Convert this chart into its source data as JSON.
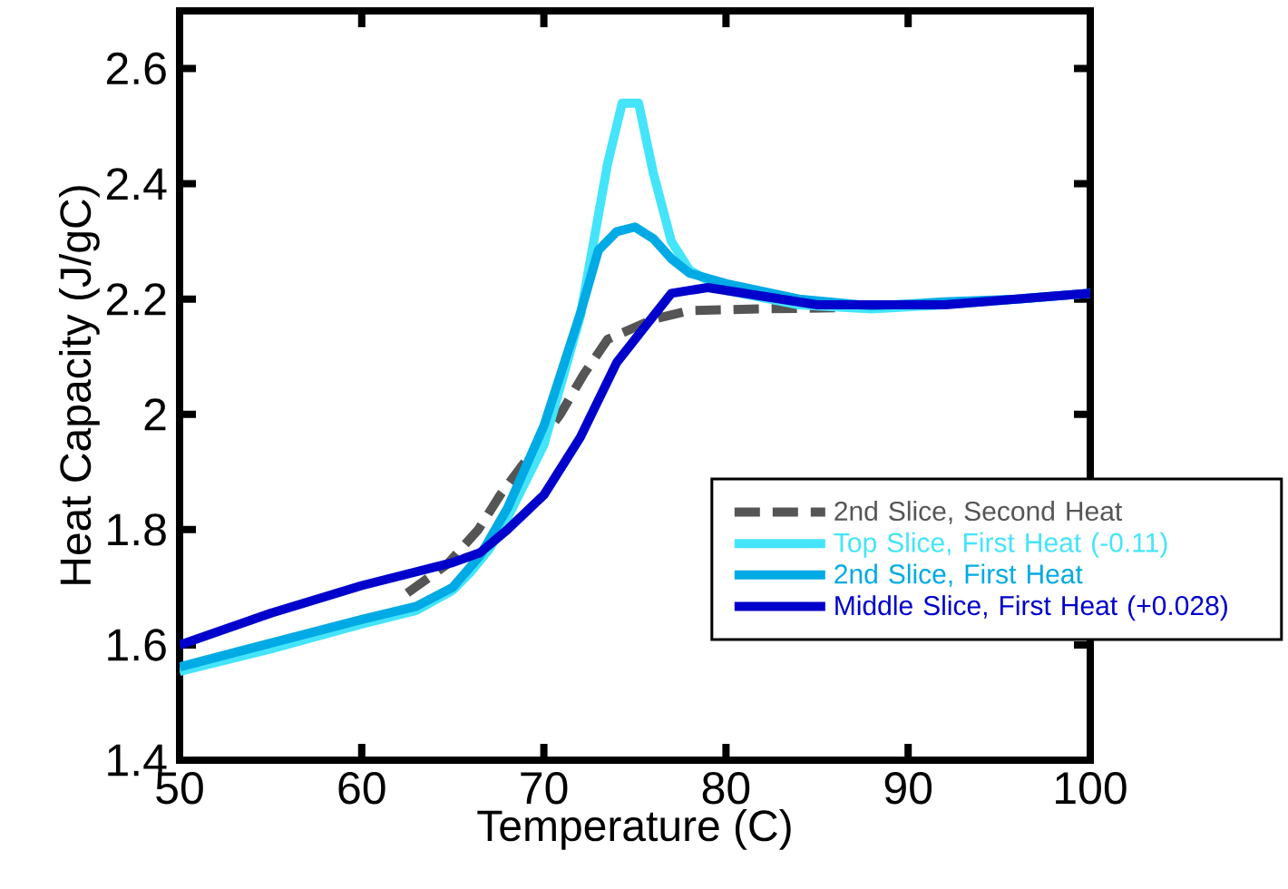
{
  "chart_data": {
    "type": "line",
    "xlabel": "Temperature (C)",
    "ylabel": "Heat Capacity (J/gC)",
    "xlim": [
      50,
      100
    ],
    "ylim": [
      1.4,
      2.7
    ],
    "xticks": [
      50,
      60,
      70,
      80,
      90,
      100
    ],
    "yticks": [
      1.4,
      1.6,
      1.8,
      2,
      2.2,
      2.4,
      2.6
    ],
    "legend": "bottom right",
    "grid": false,
    "marker": "none",
    "series": [
      {
        "name": "2nd Slice, Second Heat",
        "color": "#555555",
        "line_style": "dashed",
        "x": [
          62.5,
          64.7,
          66.4,
          67.6,
          70.9,
          72.2,
          73.5,
          76,
          78,
          82,
          86
        ],
        "values": [
          1.69,
          1.74,
          1.8,
          1.86,
          2.0,
          2.07,
          2.13,
          2.165,
          2.18,
          2.183,
          2.185
        ]
      },
      {
        "name": "Top Slice, First Heat (-0.11)",
        "color": "#44e4fa",
        "line_style": "solid",
        "x": [
          50,
          55,
          60,
          63,
          65,
          66,
          67,
          68,
          70,
          72,
          73.5,
          74.3,
          75.2,
          76,
          77,
          78,
          80,
          84,
          88,
          92,
          96,
          100
        ],
        "values": [
          1.554,
          1.593,
          1.636,
          1.66,
          1.695,
          1.727,
          1.766,
          1.82,
          1.947,
          2.17,
          2.435,
          2.54,
          2.54,
          2.42,
          2.3,
          2.25,
          2.215,
          2.19,
          2.183,
          2.19,
          2.2,
          2.21
        ]
      },
      {
        "name": "2nd Slice, First Heat",
        "color": "#00aae4",
        "line_style": "solid",
        "x": [
          50,
          60,
          63,
          65,
          66.5,
          68,
          70,
          72,
          73,
          74,
          75,
          76,
          77,
          78,
          80,
          84,
          88,
          92,
          96,
          100
        ],
        "values": [
          1.562,
          1.644,
          1.667,
          1.7,
          1.755,
          1.837,
          1.98,
          2.175,
          2.285,
          2.317,
          2.325,
          2.305,
          2.27,
          2.245,
          2.227,
          2.2,
          2.188,
          2.195,
          2.2,
          2.21
        ]
      },
      {
        "name": "Middle Slice, First Heat (+0.028)",
        "color": "#0000cc",
        "line_style": "solid",
        "x": [
          50,
          55,
          60,
          65,
          66.5,
          68,
          70,
          72,
          74,
          75.5,
          77,
          79,
          82,
          85,
          88,
          92,
          96,
          100
        ],
        "values": [
          1.6,
          1.655,
          1.703,
          1.743,
          1.76,
          1.8,
          1.86,
          1.96,
          2.09,
          2.15,
          2.21,
          2.22,
          2.205,
          2.19,
          2.19,
          2.19,
          2.2,
          2.21
        ]
      }
    ]
  }
}
